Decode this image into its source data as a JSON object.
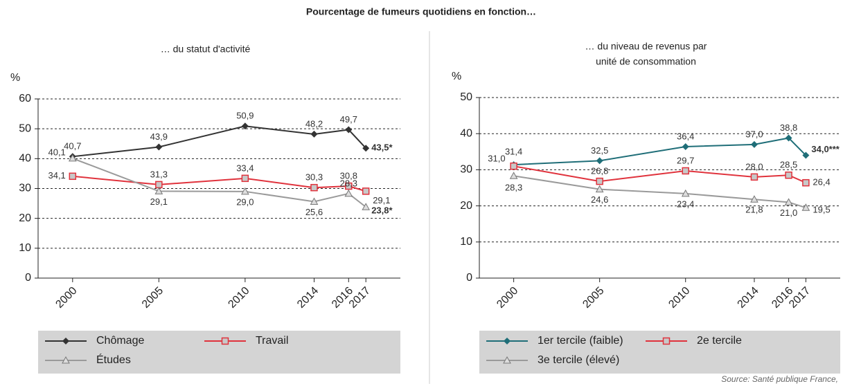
{
  "title": "Pourcentage de fumeurs quotidiens en fonction…",
  "source": "Source: Santé publique France,",
  "chart_data": [
    {
      "type": "line",
      "subtitle": [
        "… du statut d'activité"
      ],
      "y_label": "%",
      "x": [
        2000,
        2005,
        2010,
        2014,
        2016,
        2017
      ],
      "xlim": [
        1998,
        2019
      ],
      "xticks": [
        2000,
        2005,
        2010,
        2014,
        2016,
        2017
      ],
      "ylim": [
        0,
        60
      ],
      "yticks": [
        0,
        10,
        20,
        30,
        40,
        50,
        60
      ],
      "grid": true,
      "series": [
        {
          "name": "Chômage",
          "color": "#333333",
          "marker": "diamond",
          "values": [
            40.7,
            43.9,
            50.9,
            48.2,
            49.7,
            43.5
          ],
          "value_labels": [
            "40,7",
            "43,9",
            "50,9",
            "48,2",
            "49,7",
            "43,5*"
          ]
        },
        {
          "name": "Travail",
          "color": "#e0323c",
          "marker": "square",
          "values": [
            34.1,
            31.3,
            33.4,
            30.3,
            30.8,
            29.1
          ],
          "value_labels": [
            "34,1",
            "31,3",
            "33,4",
            "30,3",
            "30,8",
            "29,1"
          ]
        },
        {
          "name": "Études",
          "color": "#9a9a9a",
          "marker": "triangle",
          "values": [
            40.1,
            29.1,
            29.0,
            25.6,
            28.3,
            23.8
          ],
          "value_labels": [
            "40,1",
            "29,1",
            "29,0",
            "25,6",
            "28,3",
            "23,8*"
          ]
        }
      ]
    },
    {
      "type": "line",
      "subtitle": [
        "… du niveau de revenus par",
        "unité de consommation"
      ],
      "y_label": "%",
      "x": [
        2000,
        2005,
        2010,
        2014,
        2016,
        2017
      ],
      "xlim": [
        1998,
        2019
      ],
      "xticks": [
        2000,
        2005,
        2010,
        2014,
        2016,
        2017
      ],
      "ylim": [
        0,
        50
      ],
      "yticks": [
        0,
        10,
        20,
        30,
        40,
        50
      ],
      "grid": true,
      "series": [
        {
          "name": "1er tercile (faible)",
          "color": "#1f6e78",
          "marker": "diamond",
          "values": [
            31.4,
            32.5,
            36.4,
            37.0,
            38.8,
            34.0
          ],
          "value_labels": [
            "31,4",
            "32,5",
            "36,4",
            "37,0",
            "38,8",
            "34,0***"
          ]
        },
        {
          "name": "2e tercile",
          "color": "#e0323c",
          "marker": "square",
          "values": [
            31.0,
            26.8,
            29.7,
            28.0,
            28.5,
            26.4
          ],
          "value_labels": [
            "31,0",
            "26,8",
            "29,7",
            "28,0",
            "28,5",
            "26,4"
          ]
        },
        {
          "name": "3e tercile (élevé)",
          "color": "#9a9a9a",
          "marker": "triangle",
          "values": [
            28.3,
            24.6,
            23.4,
            21.8,
            21.0,
            19.5
          ],
          "value_labels": [
            "28,3",
            "24,6",
            "23,4",
            "21,8",
            "21,0",
            "19,5"
          ]
        }
      ]
    }
  ]
}
